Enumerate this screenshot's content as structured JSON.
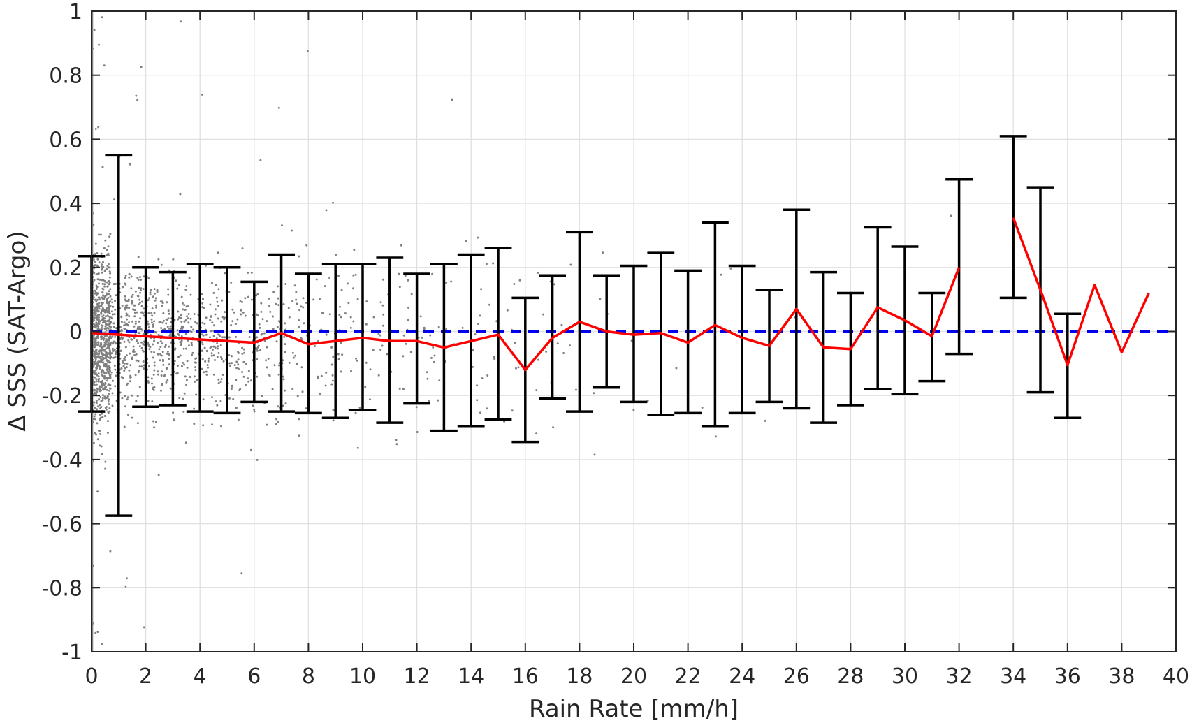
{
  "chart_data": {
    "type": "scatter",
    "title": "",
    "xlabel": "Rain Rate [mm/h]",
    "ylabel": "Δ SSS (SAT-Argo)",
    "xlim": [
      0,
      40
    ],
    "ylim": [
      -1,
      1
    ],
    "x_ticks": [
      0,
      2,
      4,
      6,
      8,
      10,
      12,
      14,
      16,
      18,
      20,
      22,
      24,
      26,
      28,
      30,
      32,
      34,
      36,
      38,
      40
    ],
    "x_tick_labels": [
      "0",
      "2",
      "4",
      "6",
      "8",
      "10",
      "12",
      "14",
      "16",
      "18",
      "20",
      "22",
      "24",
      "26",
      "28",
      "30",
      "32",
      "34",
      "36",
      "38",
      "40"
    ],
    "y_ticks": [
      1,
      0.8,
      0.6,
      0.4,
      0.2,
      0,
      -0.2,
      -0.4,
      -0.6,
      -0.8,
      -1
    ],
    "y_tick_labels": [
      "1",
      "0.8",
      "0.6",
      "0.4",
      "0.2",
      "0",
      "-0.2",
      "-0.4",
      "-0.6",
      "-0.8",
      "-1"
    ],
    "grid": true,
    "legend": "none",
    "colors": {
      "scatter": "#808080",
      "mean_line": "#ff0000",
      "zero_line": "#0000ee",
      "error_bars": "#000000",
      "grid": "#e0e0e0",
      "axes": "#262626"
    },
    "zero_reference": {
      "y": 0,
      "style": "dashed"
    },
    "binned_mean": {
      "x": [
        0,
        1,
        2,
        3,
        4,
        5,
        6,
        7,
        8,
        9,
        10,
        11,
        12,
        13,
        14,
        15,
        16,
        17,
        18,
        19,
        20,
        21,
        22,
        23,
        24,
        25,
        26,
        27,
        28,
        29,
        30,
        31,
        32,
        34,
        35,
        36,
        37,
        38,
        39
      ],
      "mean": [
        -0.005,
        -0.01,
        -0.015,
        -0.02,
        -0.025,
        -0.03,
        -0.035,
        -0.005,
        -0.04,
        -0.03,
        -0.02,
        -0.03,
        -0.03,
        -0.05,
        -0.03,
        -0.01,
        -0.12,
        -0.02,
        0.03,
        0.0,
        -0.01,
        -0.005,
        -0.035,
        0.02,
        -0.02,
        -0.045,
        0.07,
        -0.05,
        -0.055,
        0.075,
        0.035,
        -0.015,
        0.2,
        0.355,
        0.13,
        -0.105,
        0.145,
        -0.065,
        0.12
      ],
      "upper": [
        0.235,
        0.55,
        0.2,
        0.185,
        0.21,
        0.2,
        0.155,
        0.24,
        0.18,
        0.21,
        0.21,
        0.23,
        0.18,
        0.21,
        0.24,
        0.26,
        0.105,
        0.175,
        0.31,
        0.175,
        0.205,
        0.245,
        0.19,
        0.34,
        0.205,
        0.13,
        0.38,
        0.185,
        0.12,
        0.325,
        0.265,
        0.12,
        0.475,
        0.61,
        0.45,
        0.055,
        0.145,
        -0.065,
        0.12
      ],
      "lower": [
        -0.25,
        -0.575,
        -0.235,
        -0.23,
        -0.25,
        -0.255,
        -0.22,
        -0.25,
        -0.255,
        -0.27,
        -0.245,
        -0.285,
        -0.225,
        -0.31,
        -0.295,
        -0.275,
        -0.345,
        -0.21,
        -0.25,
        -0.175,
        -0.22,
        -0.26,
        -0.255,
        -0.295,
        -0.255,
        -0.22,
        -0.24,
        -0.285,
        -0.23,
        -0.18,
        -0.195,
        -0.155,
        -0.07,
        0.105,
        -0.19,
        -0.27,
        0.145,
        -0.065,
        0.12
      ]
    }
  }
}
